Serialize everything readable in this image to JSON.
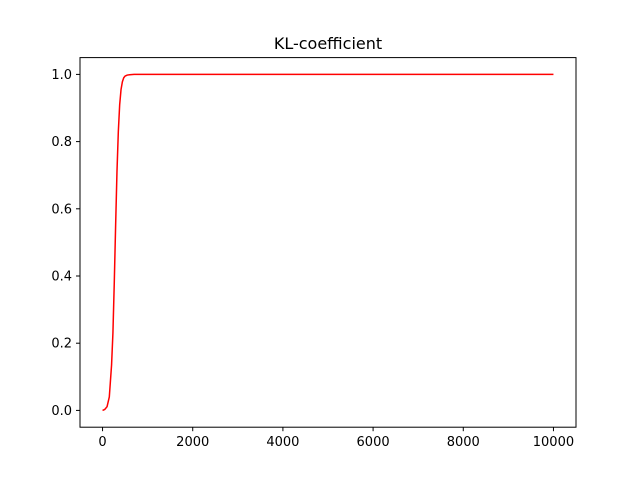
{
  "chart_data": {
    "type": "line",
    "title": "KL-coefficient",
    "xlabel": "",
    "ylabel": "",
    "xlim": [
      -500,
      10500
    ],
    "ylim": [
      -0.05,
      1.05
    ],
    "x_ticks": [
      0,
      2000,
      4000,
      6000,
      8000,
      10000
    ],
    "x_tick_labels": [
      "0",
      "2000",
      "4000",
      "6000",
      "8000",
      "10000"
    ],
    "y_ticks": [
      0.0,
      0.2,
      0.4,
      0.6,
      0.8,
      1.0
    ],
    "y_tick_labels": [
      "0.0",
      "0.2",
      "0.4",
      "0.6",
      "0.8",
      "1.0"
    ],
    "grid": false,
    "series": [
      {
        "color": "#ff0000",
        "x": [
          0,
          50,
          100,
          150,
          200,
          230,
          260,
          290,
          320,
          350,
          380,
          410,
          440,
          470,
          500,
          550,
          600,
          700,
          800,
          1000,
          2000,
          4000,
          6000,
          8000,
          10000
        ],
        "y": [
          0.0,
          0.003,
          0.011,
          0.04,
          0.135,
          0.23,
          0.38,
          0.55,
          0.71,
          0.83,
          0.91,
          0.955,
          0.978,
          0.99,
          0.995,
          0.998,
          0.999,
          1.0,
          1.0,
          1.0,
          1.0,
          1.0,
          1.0,
          1.0,
          1.0
        ]
      }
    ]
  }
}
